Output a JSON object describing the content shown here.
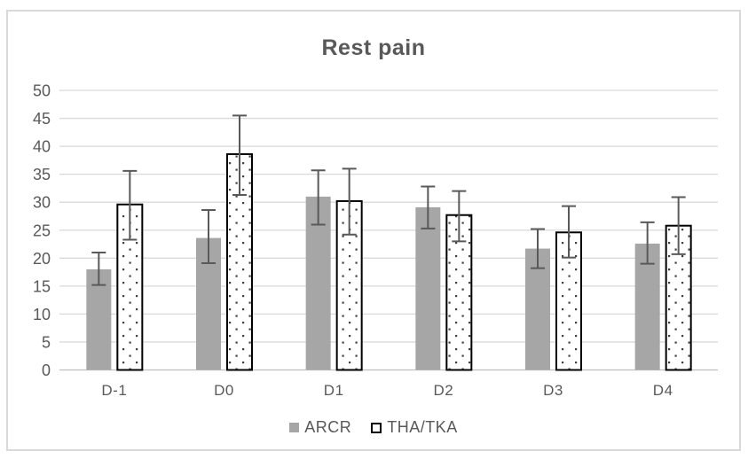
{
  "window": {
    "background": "#ffffff",
    "frame_border_color": "#d9d9d9"
  },
  "chart_data": {
    "type": "bar",
    "title": "Rest pain",
    "categories": [
      "D-1",
      "D0",
      "D1",
      "D2",
      "D3",
      "D4"
    ],
    "series": [
      {
        "name": "ARCR",
        "fill": "solid",
        "color": "#a6a6a6",
        "values": [
          18.0,
          23.6,
          31.0,
          29.1,
          21.7,
          22.6
        ],
        "error_low": [
          15.2,
          19.1,
          26.0,
          25.3,
          18.2,
          19.0
        ],
        "error_high": [
          21.0,
          28.6,
          35.7,
          32.8,
          25.2,
          26.4
        ]
      },
      {
        "name": "THA/TKA",
        "fill": "dotted",
        "color": "#ffffff",
        "border_color": "#000000",
        "dot_color": "#404040",
        "values": [
          29.6,
          38.6,
          30.2,
          27.7,
          24.6,
          25.8
        ],
        "error_low": [
          23.3,
          31.3,
          24.2,
          23.0,
          20.1,
          20.7
        ],
        "error_high": [
          35.6,
          45.5,
          36.0,
          32.0,
          29.3,
          30.9
        ]
      }
    ],
    "ylim": [
      0,
      50
    ],
    "ytick_step": 5,
    "yticks": [
      0,
      5,
      10,
      15,
      20,
      25,
      30,
      35,
      40,
      45,
      50
    ],
    "grid": true,
    "legend_position": "bottom",
    "colors": {
      "gridline": "#d9d9d9",
      "axis_line": "#bfbfbf",
      "error_bar": "#595959",
      "text": "#595959"
    }
  }
}
